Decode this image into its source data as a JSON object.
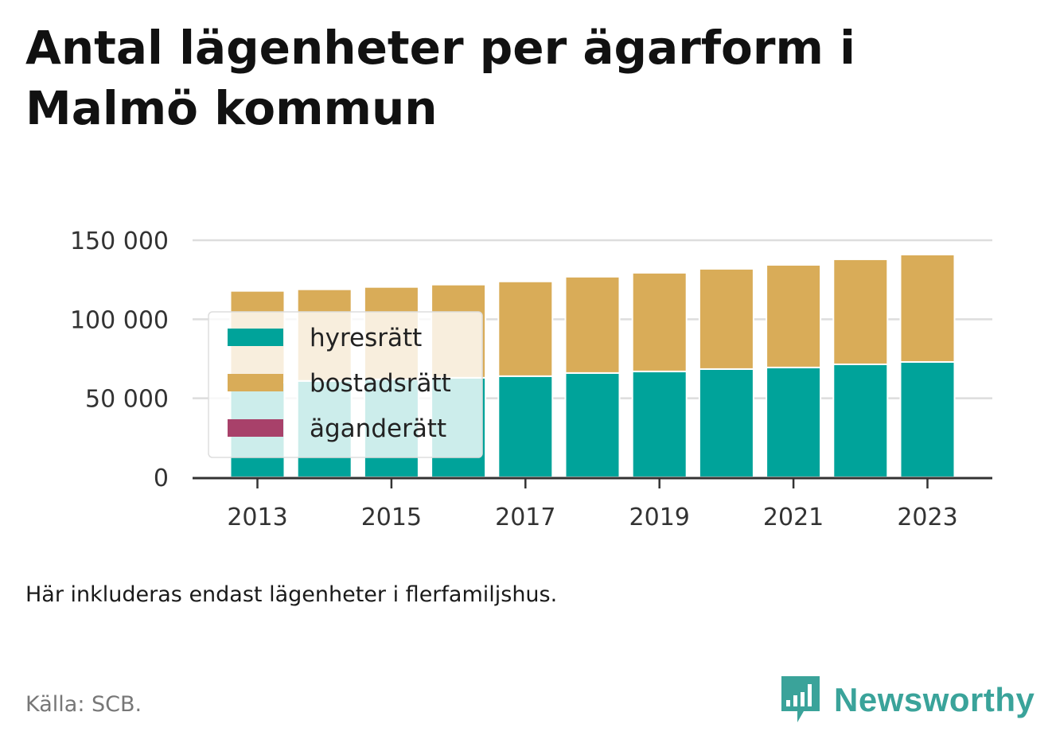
{
  "title": "Antal lägenheter per ägarform i Malmö kommun",
  "note": "Här inkluderas endast lägenheter i flerfamiljshus.",
  "source": "Källa: SCB.",
  "brand": "Newsworthy",
  "colors": {
    "hyresratt": "#00a39a",
    "bostadsratt": "#d9ac58",
    "aganderatt": "#a8416a",
    "grid": "#dddddd",
    "axis": "#333333",
    "brand": "#3aa39a"
  },
  "chart_data": {
    "type": "bar",
    "stacked": true,
    "categories": [
      2013,
      2014,
      2015,
      2016,
      2017,
      2018,
      2019,
      2020,
      2021,
      2022,
      2023
    ],
    "x_tick_labels": [
      "2013",
      "2015",
      "2017",
      "2019",
      "2021",
      "2023"
    ],
    "y_ticks": [
      0,
      50000,
      100000,
      150000
    ],
    "y_tick_labels": [
      "0",
      "50 000",
      "100 000",
      "150 000"
    ],
    "ylim": [
      0,
      150000
    ],
    "grid": true,
    "legend_position": "top-left",
    "series": [
      {
        "name": "hyresrätt",
        "values": [
          60000,
          61000,
          62000,
          63000,
          64000,
          66000,
          67000,
          68500,
          69500,
          71500,
          73000
        ]
      },
      {
        "name": "bostadsrätt",
        "values": [
          58000,
          58000,
          58500,
          59000,
          60000,
          61000,
          62500,
          63500,
          65000,
          66500,
          68000
        ]
      },
      {
        "name": "äganderätt",
        "values": [
          200,
          200,
          200,
          200,
          200,
          200,
          200,
          200,
          200,
          200,
          200
        ]
      }
    ]
  }
}
